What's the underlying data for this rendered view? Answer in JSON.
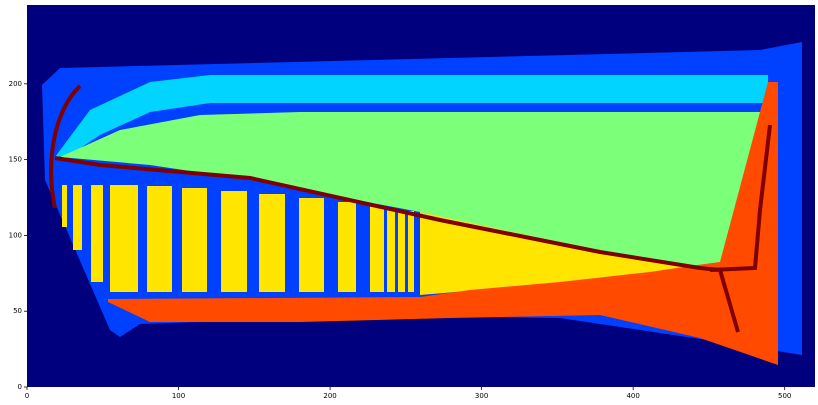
{
  "chart_data": {
    "type": "image",
    "xlim": [
      0,
      520
    ],
    "ylim": [
      0,
      252
    ],
    "xticks": [
      0,
      100,
      200,
      300,
      400,
      500
    ],
    "yticks": [
      0,
      50,
      100,
      150,
      200
    ]
  }
}
